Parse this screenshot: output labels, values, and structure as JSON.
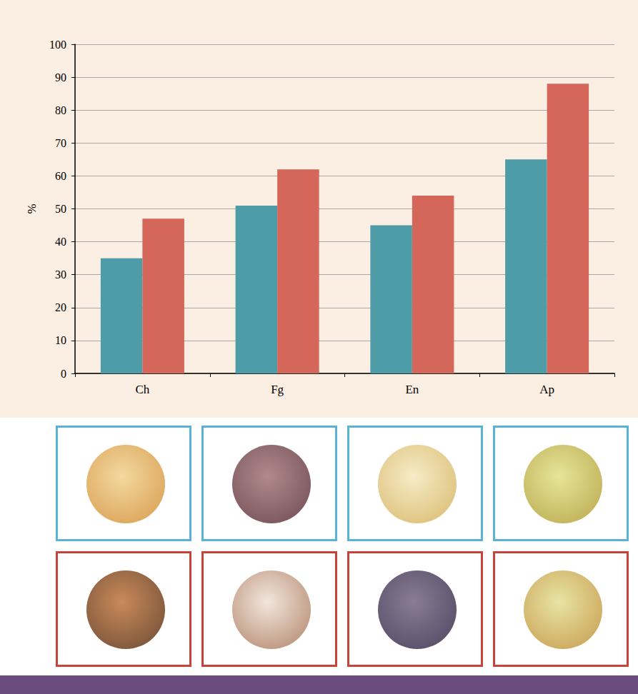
{
  "chart_data": {
    "type": "bar",
    "categories": [
      "Ch",
      "Fg",
      "En",
      "Ap"
    ],
    "series": [
      {
        "color": "#4e9ca8",
        "values": [
          35,
          51,
          45,
          65
        ]
      },
      {
        "color": "#d4665a",
        "values": [
          47,
          62,
          54,
          88
        ]
      }
    ],
    "ylabel": "%",
    "ylim": [
      0,
      100
    ],
    "yticks": [
      0,
      10,
      20,
      30,
      40,
      50,
      60,
      70,
      80,
      90,
      100
    ],
    "grid": true
  }
}
